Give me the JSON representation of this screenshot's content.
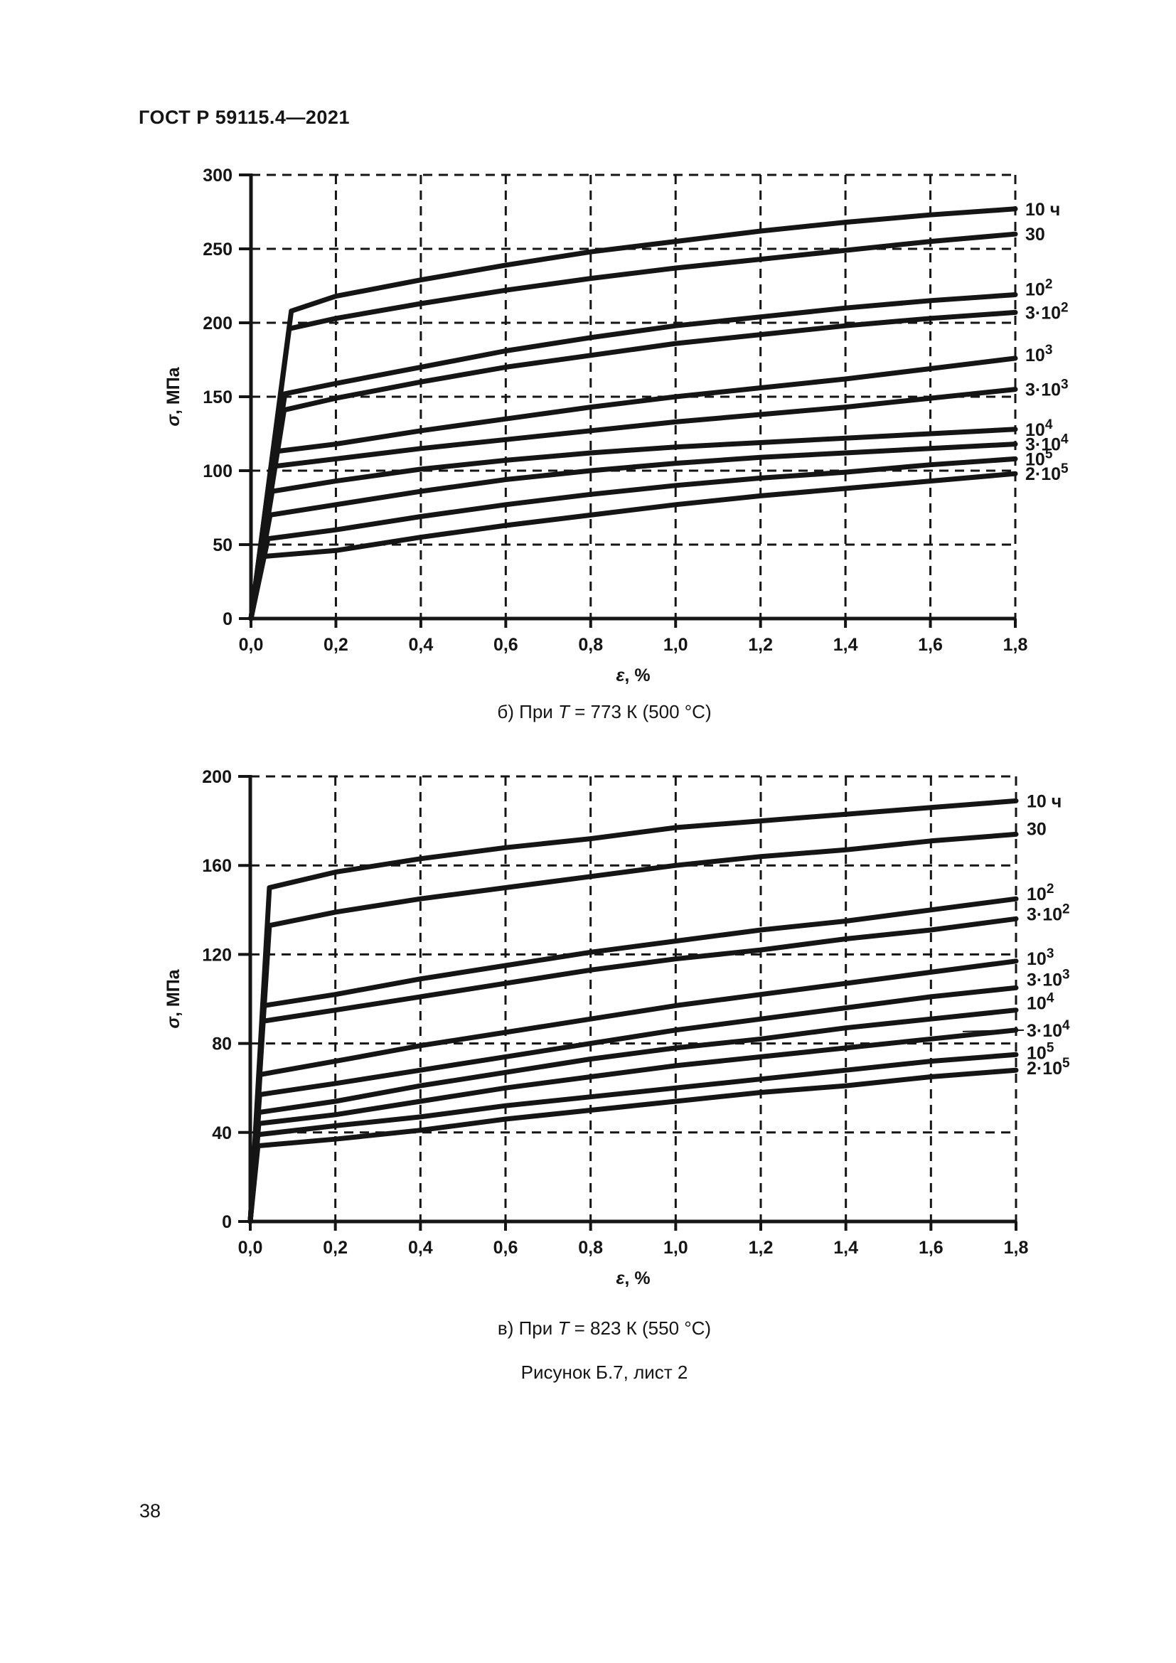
{
  "page": {
    "header": "ГОСТ Р 59115.4—2021",
    "page_number": "38",
    "figure_caption": "Рисунок Б.7, лист 2"
  },
  "captions": [
    {
      "pre": "б) При ",
      "it": "T",
      "post": " = 773 К (500 °С)"
    },
    {
      "pre": "в) При ",
      "it": "T",
      "post": " = 823 К (550 °С)"
    }
  ],
  "chart_data": [
    {
      "type": "line",
      "title": "б) При T = 773 К (500 °С)",
      "xlabel": "ε, %",
      "ylabel": "σ, МПа",
      "xlim": [
        0,
        1.8
      ],
      "ylim": [
        0,
        300
      ],
      "xtick_labels": [
        "0,0",
        "0,2",
        "0,4",
        "0,6",
        "0,8",
        "1,0",
        "1,2",
        "1,4",
        "1,6",
        "1,8"
      ],
      "ytick_labels": [
        "0",
        "50",
        "100",
        "150",
        "200",
        "250",
        "300"
      ],
      "grid": "dashed",
      "legend_position": "right-of-plot",
      "series": [
        {
          "label": "10 ч",
          "points": [
            [
              0,
              0
            ],
            [
              0.095,
              208
            ],
            [
              0.2,
              218
            ],
            [
              0.4,
              229
            ],
            [
              0.6,
              239
            ],
            [
              0.8,
              248
            ],
            [
              1.0,
              255
            ],
            [
              1.2,
              262
            ],
            [
              1.4,
              268
            ],
            [
              1.6,
              273
            ],
            [
              1.8,
              277
            ]
          ]
        },
        {
          "label": "30",
          "points": [
            [
              0,
              0
            ],
            [
              0.09,
              196
            ],
            [
              0.2,
              203
            ],
            [
              0.4,
              213
            ],
            [
              0.6,
              222
            ],
            [
              0.8,
              230
            ],
            [
              1.0,
              237
            ],
            [
              1.2,
              243
            ],
            [
              1.4,
              249
            ],
            [
              1.6,
              255
            ],
            [
              1.8,
              260
            ]
          ]
        },
        {
          "label": "10^2",
          "label_dy": -8,
          "points": [
            [
              0,
              0
            ],
            [
              0.08,
              152
            ],
            [
              0.2,
              159
            ],
            [
              0.4,
              170
            ],
            [
              0.6,
              181
            ],
            [
              0.8,
              190
            ],
            [
              1.0,
              198
            ],
            [
              1.2,
              204
            ],
            [
              1.4,
              210
            ],
            [
              1.6,
              215
            ],
            [
              1.8,
              219
            ]
          ]
        },
        {
          "label": "3·10^2",
          "points": [
            [
              0,
              0
            ],
            [
              0.078,
              141
            ],
            [
              0.2,
              149
            ],
            [
              0.4,
              160
            ],
            [
              0.6,
              170
            ],
            [
              0.8,
              178
            ],
            [
              1.0,
              186
            ],
            [
              1.2,
              192
            ],
            [
              1.4,
              198
            ],
            [
              1.6,
              203
            ],
            [
              1.8,
              207
            ]
          ]
        },
        {
          "label": "10^3",
          "label_dy": -5,
          "points": [
            [
              0,
              0
            ],
            [
              0.058,
              113
            ],
            [
              0.2,
              118
            ],
            [
              0.4,
              127
            ],
            [
              0.6,
              135
            ],
            [
              0.8,
              143
            ],
            [
              1.0,
              150
            ],
            [
              1.2,
              156
            ],
            [
              1.4,
              162
            ],
            [
              1.6,
              169
            ],
            [
              1.8,
              176
            ]
          ]
        },
        {
          "label": "3·10^3",
          "points": [
            [
              0,
              0
            ],
            [
              0.055,
              103
            ],
            [
              0.2,
              108
            ],
            [
              0.4,
              115
            ],
            [
              0.6,
              121
            ],
            [
              0.8,
              127
            ],
            [
              1.0,
              133
            ],
            [
              1.2,
              138
            ],
            [
              1.4,
              143
            ],
            [
              1.6,
              149
            ],
            [
              1.8,
              155
            ]
          ]
        },
        {
          "label": "10^4",
          "points": [
            [
              0,
              0
            ],
            [
              0.05,
              86
            ],
            [
              0.2,
              93
            ],
            [
              0.4,
              101
            ],
            [
              0.6,
              107
            ],
            [
              0.8,
              112
            ],
            [
              1.0,
              116
            ],
            [
              1.2,
              119
            ],
            [
              1.4,
              122
            ],
            [
              1.6,
              125
            ],
            [
              1.8,
              128
            ]
          ]
        },
        {
          "label": "3·10^4",
          "points": [
            [
              0,
              0
            ],
            [
              0.045,
              70
            ],
            [
              0.2,
              77
            ],
            [
              0.4,
              86
            ],
            [
              0.6,
              94
            ],
            [
              0.8,
              100
            ],
            [
              1.0,
              105
            ],
            [
              1.2,
              109
            ],
            [
              1.4,
              112
            ],
            [
              1.6,
              115
            ],
            [
              1.8,
              118
            ]
          ]
        },
        {
          "label": "10^5",
          "points": [
            [
              0,
              0
            ],
            [
              0.04,
              54
            ],
            [
              0.2,
              60
            ],
            [
              0.4,
              69
            ],
            [
              0.6,
              77
            ],
            [
              0.8,
              84
            ],
            [
              1.0,
              90
            ],
            [
              1.2,
              95
            ],
            [
              1.4,
              99
            ],
            [
              1.6,
              104
            ],
            [
              1.8,
              108
            ]
          ]
        },
        {
          "label": "2·10^5",
          "points": [
            [
              0,
              0
            ],
            [
              0.03,
              42
            ],
            [
              0.2,
              46
            ],
            [
              0.4,
              55
            ],
            [
              0.6,
              63
            ],
            [
              0.8,
              70
            ],
            [
              1.0,
              77
            ],
            [
              1.2,
              83
            ],
            [
              1.4,
              88
            ],
            [
              1.6,
              93
            ],
            [
              1.8,
              98
            ]
          ]
        }
      ]
    },
    {
      "type": "line",
      "title": "в) При T = 823 К (550 °С)",
      "xlabel": "ε, %",
      "ylabel": "σ, МПа",
      "xlim": [
        0,
        1.8
      ],
      "ylim": [
        0,
        200
      ],
      "xtick_labels": [
        "0,0",
        "0,2",
        "0,4",
        "0,6",
        "0,8",
        "1,0",
        "1,2",
        "1,4",
        "1,6",
        "1,8"
      ],
      "ytick_labels": [
        "0",
        "40",
        "80",
        "120",
        "160",
        "200"
      ],
      "grid": "dashed",
      "legend_position": "right-of-plot",
      "series": [
        {
          "label": "10 ч",
          "points": [
            [
              0,
              0
            ],
            [
              0.045,
              150
            ],
            [
              0.2,
              157
            ],
            [
              0.4,
              163
            ],
            [
              0.6,
              168
            ],
            [
              0.8,
              172
            ],
            [
              1.0,
              177
            ],
            [
              1.2,
              180
            ],
            [
              1.4,
              183
            ],
            [
              1.6,
              186
            ],
            [
              1.8,
              189
            ]
          ]
        },
        {
          "label": "30",
          "label_dy": -8,
          "points": [
            [
              0,
              0
            ],
            [
              0.045,
              133
            ],
            [
              0.2,
              139
            ],
            [
              0.4,
              145
            ],
            [
              0.6,
              150
            ],
            [
              0.8,
              155
            ],
            [
              1.0,
              160
            ],
            [
              1.2,
              164
            ],
            [
              1.4,
              167
            ],
            [
              1.6,
              171
            ],
            [
              1.8,
              174
            ]
          ]
        },
        {
          "label": "10^2",
          "label_dy": -7,
          "points": [
            [
              0,
              0
            ],
            [
              0.032,
              97
            ],
            [
              0.2,
              102
            ],
            [
              0.4,
              109
            ],
            [
              0.6,
              115
            ],
            [
              0.8,
              121
            ],
            [
              1.0,
              126
            ],
            [
              1.2,
              131
            ],
            [
              1.4,
              135
            ],
            [
              1.6,
              140
            ],
            [
              1.8,
              145
            ]
          ]
        },
        {
          "label": "3·10^2",
          "label_dy": -7,
          "points": [
            [
              0,
              0
            ],
            [
              0.03,
              90
            ],
            [
              0.2,
              95
            ],
            [
              0.4,
              101
            ],
            [
              0.6,
              107
            ],
            [
              0.8,
              113
            ],
            [
              1.0,
              118
            ],
            [
              1.2,
              122
            ],
            [
              1.4,
              127
            ],
            [
              1.6,
              131
            ],
            [
              1.8,
              136
            ]
          ]
        },
        {
          "label": "10^3",
          "label_dy": -4,
          "points": [
            [
              0,
              0
            ],
            [
              0.023,
              66
            ],
            [
              0.2,
              72
            ],
            [
              0.4,
              79
            ],
            [
              0.6,
              85
            ],
            [
              0.8,
              91
            ],
            [
              1.0,
              97
            ],
            [
              1.2,
              102
            ],
            [
              1.4,
              107
            ],
            [
              1.6,
              112
            ],
            [
              1.8,
              117
            ]
          ]
        },
        {
          "label": "3·10^3",
          "label_dy": -12,
          "points": [
            [
              0,
              0
            ],
            [
              0.022,
              57
            ],
            [
              0.2,
              62
            ],
            [
              0.4,
              68
            ],
            [
              0.6,
              74
            ],
            [
              0.8,
              80
            ],
            [
              1.0,
              86
            ],
            [
              1.2,
              91
            ],
            [
              1.4,
              96
            ],
            [
              1.6,
              101
            ],
            [
              1.8,
              105
            ]
          ]
        },
        {
          "label": "10^4",
          "label_dy": -10,
          "points": [
            [
              0,
              0
            ],
            [
              0.02,
              49
            ],
            [
              0.2,
              54
            ],
            [
              0.4,
              61
            ],
            [
              0.6,
              67
            ],
            [
              0.8,
              73
            ],
            [
              1.0,
              78
            ],
            [
              1.2,
              82
            ],
            [
              1.4,
              87
            ],
            [
              1.6,
              91
            ],
            [
              1.8,
              95
            ]
          ]
        },
        {
          "label": "3·10^4",
          "leader": true,
          "points": [
            [
              0,
              0
            ],
            [
              0.02,
              44
            ],
            [
              0.2,
              48
            ],
            [
              0.4,
              54
            ],
            [
              0.6,
              60
            ],
            [
              0.8,
              65
            ],
            [
              1.0,
              70
            ],
            [
              1.2,
              74
            ],
            [
              1.4,
              78
            ],
            [
              1.6,
              82
            ],
            [
              1.8,
              86
            ]
          ]
        },
        {
          "label": "10^5",
          "label_dy": -3,
          "points": [
            [
              0,
              0
            ],
            [
              0.018,
              39
            ],
            [
              0.2,
              43
            ],
            [
              0.4,
              47
            ],
            [
              0.6,
              52
            ],
            [
              0.8,
              56
            ],
            [
              1.0,
              60
            ],
            [
              1.2,
              64
            ],
            [
              1.4,
              68
            ],
            [
              1.6,
              72
            ],
            [
              1.8,
              75
            ]
          ]
        },
        {
          "label": "2·10^5",
          "label_dy": -3,
          "points": [
            [
              0,
              0
            ],
            [
              0.018,
              34
            ],
            [
              0.2,
              37
            ],
            [
              0.4,
              41
            ],
            [
              0.6,
              46
            ],
            [
              0.8,
              50
            ],
            [
              1.0,
              54
            ],
            [
              1.2,
              58
            ],
            [
              1.4,
              61
            ],
            [
              1.6,
              65
            ],
            [
              1.8,
              68
            ]
          ]
        }
      ]
    }
  ]
}
